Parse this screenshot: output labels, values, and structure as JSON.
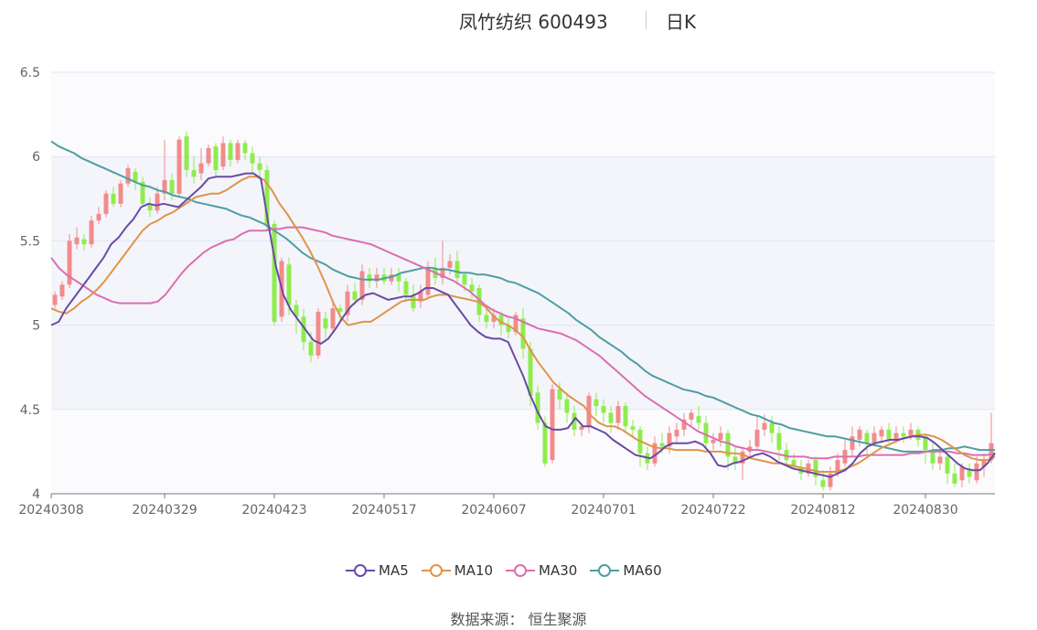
{
  "title": {
    "main": "凤竹纺织 600493",
    "sub": "日K"
  },
  "source": "数据来源： 恒生聚源",
  "colors": {
    "up": "#f28b8b",
    "down": "#8fec4c",
    "ma5": "#6a4ba3",
    "ma10": "#e0944a",
    "ma30": "#db6eb0",
    "ma60": "#4f9ea0",
    "grid": "#dfe6f3",
    "band": "#f3f5fb"
  },
  "chart_data": {
    "type": "candlestick",
    "ylim": [
      4,
      6.5
    ],
    "y_ticks": [
      "4",
      "4.5",
      "5",
      "5.5",
      "6",
      "6.5"
    ],
    "x_tick_labels": [
      "20240308",
      "20240329",
      "20240423",
      "20240517",
      "20240607",
      "20240701",
      "20240722",
      "20240812",
      "20240830"
    ],
    "x_tick_index": [
      0,
      15,
      30,
      45,
      60,
      75,
      90,
      105,
      119
    ],
    "legend": [
      "MA5",
      "MA10",
      "MA30",
      "MA60"
    ],
    "candles": [
      [
        5.12,
        5.18,
        5.1,
        5.2
      ],
      [
        5.17,
        5.24,
        5.15,
        5.26
      ],
      [
        5.24,
        5.5,
        5.22,
        5.54
      ],
      [
        5.48,
        5.52,
        5.45,
        5.58
      ],
      [
        5.51,
        5.48,
        5.44,
        5.54
      ],
      [
        5.48,
        5.62,
        5.46,
        5.65
      ],
      [
        5.62,
        5.66,
        5.6,
        5.7
      ],
      [
        5.66,
        5.78,
        5.64,
        5.8
      ],
      [
        5.78,
        5.72,
        5.7,
        5.82
      ],
      [
        5.72,
        5.84,
        5.7,
        5.86
      ],
      [
        5.84,
        5.93,
        5.82,
        5.95
      ],
      [
        5.91,
        5.85,
        5.8,
        5.93
      ],
      [
        5.85,
        5.72,
        5.7,
        5.88
      ],
      [
        5.72,
        5.68,
        5.64,
        5.76
      ],
      [
        5.68,
        5.78,
        5.66,
        5.82
      ],
      [
        5.78,
        5.86,
        5.74,
        6.1
      ],
      [
        5.86,
        5.78,
        5.74,
        5.9
      ],
      [
        5.78,
        6.1,
        5.76,
        6.12
      ],
      [
        6.12,
        5.92,
        5.88,
        6.15
      ],
      [
        5.92,
        5.88,
        5.84,
        6.0
      ],
      [
        5.9,
        5.96,
        5.86,
        6.05
      ],
      [
        5.96,
        6.05,
        5.94,
        6.07
      ],
      [
        6.06,
        5.92,
        5.88,
        6.08
      ],
      [
        5.94,
        6.08,
        5.92,
        6.12
      ],
      [
        6.08,
        5.98,
        5.94,
        6.1
      ],
      [
        5.98,
        6.08,
        5.96,
        6.1
      ],
      [
        6.08,
        6.02,
        5.98,
        6.1
      ],
      [
        6.02,
        5.96,
        5.9,
        6.06
      ],
      [
        5.96,
        5.92,
        5.86,
        6.0
      ],
      [
        5.92,
        5.6,
        5.55,
        5.95
      ],
      [
        5.6,
        5.02,
        5.0,
        5.62
      ],
      [
        5.05,
        5.38,
        5.02,
        5.4
      ],
      [
        5.36,
        5.12,
        5.06,
        5.4
      ],
      [
        5.12,
        5.05,
        4.95,
        5.15
      ],
      [
        5.05,
        4.9,
        4.85,
        5.1
      ],
      [
        4.9,
        4.82,
        4.78,
        4.96
      ],
      [
        4.82,
        5.08,
        4.8,
        5.1
      ],
      [
        5.04,
        4.98,
        4.92,
        5.08
      ],
      [
        4.98,
        5.1,
        4.96,
        5.15
      ],
      [
        5.1,
        5.08,
        5.02,
        5.12
      ],
      [
        5.06,
        5.2,
        5.02,
        5.24
      ],
      [
        5.2,
        5.15,
        5.12,
        5.25
      ],
      [
        5.15,
        5.32,
        5.12,
        5.36
      ],
      [
        5.3,
        5.26,
        5.22,
        5.34
      ],
      [
        5.26,
        5.3,
        5.22,
        5.34
      ],
      [
        5.3,
        5.26,
        5.24,
        5.34
      ],
      [
        5.26,
        5.3,
        5.24,
        5.34
      ],
      [
        5.3,
        5.26,
        5.2,
        5.34
      ],
      [
        5.26,
        5.18,
        5.14,
        5.28
      ],
      [
        5.18,
        5.1,
        5.08,
        5.24
      ],
      [
        5.14,
        5.2,
        5.1,
        5.24
      ],
      [
        5.18,
        5.34,
        5.16,
        5.38
      ],
      [
        5.34,
        5.28,
        5.24,
        5.4
      ],
      [
        5.28,
        5.34,
        5.24,
        5.5
      ],
      [
        5.34,
        5.38,
        5.3,
        5.42
      ],
      [
        5.38,
        5.28,
        5.24,
        5.44
      ],
      [
        5.3,
        5.24,
        5.2,
        5.32
      ],
      [
        5.24,
        5.2,
        5.16,
        5.28
      ],
      [
        5.22,
        5.06,
        5.02,
        5.24
      ],
      [
        5.06,
        5.02,
        4.98,
        5.1
      ],
      [
        5.02,
        5.06,
        4.98,
        5.1
      ],
      [
        5.06,
        5.0,
        4.94,
        5.08
      ],
      [
        5.0,
        4.96,
        4.92,
        5.04
      ],
      [
        4.96,
        5.06,
        4.94,
        5.08
      ],
      [
        5.04,
        4.86,
        4.8,
        5.1
      ],
      [
        4.86,
        4.58,
        4.52,
        4.9
      ],
      [
        4.6,
        4.42,
        4.38,
        4.64
      ],
      [
        4.42,
        4.18,
        4.16,
        4.46
      ],
      [
        4.2,
        4.62,
        4.18,
        4.65
      ],
      [
        4.62,
        4.56,
        4.5,
        4.66
      ],
      [
        4.56,
        4.48,
        4.42,
        4.6
      ],
      [
        4.48,
        4.38,
        4.34,
        4.52
      ],
      [
        4.38,
        4.4,
        4.34,
        4.42
      ],
      [
        4.4,
        4.58,
        4.36,
        4.6
      ],
      [
        4.56,
        4.52,
        4.46,
        4.6
      ],
      [
        4.52,
        4.48,
        4.42,
        4.56
      ],
      [
        4.48,
        4.42,
        4.36,
        4.52
      ],
      [
        4.42,
        4.52,
        4.38,
        4.55
      ],
      [
        4.52,
        4.4,
        4.36,
        4.54
      ],
      [
        4.4,
        4.38,
        4.34,
        4.44
      ],
      [
        4.38,
        4.24,
        4.16,
        4.4
      ],
      [
        4.24,
        4.18,
        4.14,
        4.28
      ],
      [
        4.18,
        4.3,
        4.16,
        4.34
      ],
      [
        4.3,
        4.28,
        4.24,
        4.36
      ],
      [
        4.28,
        4.36,
        4.24,
        4.4
      ],
      [
        4.34,
        4.38,
        4.3,
        4.42
      ],
      [
        4.38,
        4.44,
        4.34,
        4.48
      ],
      [
        4.44,
        4.48,
        4.4,
        4.5
      ],
      [
        4.46,
        4.42,
        4.38,
        4.52
      ],
      [
        4.42,
        4.3,
        4.26,
        4.46
      ],
      [
        4.3,
        4.32,
        4.26,
        4.36
      ],
      [
        4.32,
        4.36,
        4.28,
        4.4
      ],
      [
        4.36,
        4.22,
        4.14,
        4.38
      ],
      [
        4.22,
        4.18,
        4.14,
        4.28
      ],
      [
        4.18,
        4.25,
        4.08,
        4.28
      ]
    ],
    "candles_tail": [
      [
        4.25,
        4.28,
        4.22,
        4.32
      ],
      [
        4.28,
        4.38,
        4.26,
        4.46
      ],
      [
        4.38,
        4.42,
        4.34,
        4.47
      ],
      [
        4.42,
        4.36,
        4.3,
        4.46
      ],
      [
        4.36,
        4.26,
        4.2,
        4.4
      ],
      [
        4.26,
        4.2,
        4.16,
        4.3
      ],
      [
        4.2,
        4.16,
        4.14,
        4.24
      ],
      [
        4.16,
        4.12,
        4.08,
        4.2
      ],
      [
        4.12,
        4.18,
        4.1,
        4.2
      ],
      [
        4.2,
        4.1,
        4.05,
        4.22
      ],
      [
        4.08,
        4.04,
        4.02,
        4.14
      ],
      [
        4.04,
        4.12,
        4.02,
        4.16
      ],
      [
        4.12,
        4.2,
        4.1,
        4.24
      ],
      [
        4.18,
        4.26,
        4.16,
        4.32
      ],
      [
        4.26,
        4.34,
        4.22,
        4.4
      ],
      [
        4.32,
        4.38,
        4.28,
        4.4
      ],
      [
        4.36,
        4.3,
        4.24,
        4.38
      ],
      [
        4.3,
        4.36,
        4.28,
        4.4
      ],
      [
        4.34,
        4.38,
        4.3,
        4.4
      ],
      [
        4.38,
        4.32,
        4.3,
        4.42
      ],
      [
        4.32,
        4.36,
        4.3,
        4.4
      ],
      [
        4.36,
        4.34,
        4.3,
        4.4
      ],
      [
        4.34,
        4.38,
        4.32,
        4.42
      ],
      [
        4.38,
        4.32,
        4.28,
        4.4
      ],
      [
        4.34,
        4.26,
        4.18,
        4.36
      ]
    ],
    "candles_end": [
      [
        4.26,
        4.18,
        4.14,
        4.3
      ],
      [
        4.18,
        4.22,
        4.14,
        4.26
      ],
      [
        4.22,
        4.12,
        4.06,
        4.24
      ],
      [
        4.12,
        4.06,
        4.04,
        4.18
      ],
      [
        4.08,
        4.16,
        4.04,
        4.18
      ],
      [
        4.14,
        4.1,
        4.06,
        4.18
      ],
      [
        4.08,
        4.18,
        4.06,
        4.22
      ],
      [
        4.16,
        4.2,
        4.1,
        4.24
      ],
      [
        4.2,
        4.3,
        4.18,
        4.48
      ]
    ],
    "ma5": [
      5.0,
      5.02,
      5.1,
      5.16,
      5.22,
      5.28,
      5.34,
      5.4,
      5.48,
      5.52,
      5.58,
      5.63,
      5.7,
      5.72,
      5.71,
      5.72,
      5.71,
      5.7,
      5.74,
      5.78,
      5.82,
      5.87,
      5.88,
      5.88,
      5.88,
      5.89,
      5.9,
      5.9,
      5.87,
      5.6,
      5.35,
      5.18,
      5.09,
      5.03,
      4.97,
      4.91,
      4.89,
      4.92,
      4.98,
      5.05,
      5.11,
      5.15,
      5.18,
      5.19,
      5.17,
      5.15,
      5.16,
      5.17,
      5.17,
      5.19,
      5.22,
      5.22,
      5.2,
      5.18,
      5.12,
      5.06,
      5.0,
      4.96,
      4.93,
      4.92,
      4.92,
      4.9,
      4.8,
      4.7,
      4.58,
      4.48,
      4.4,
      4.38,
      4.38,
      4.39,
      4.45,
      4.4,
      4.4,
      4.38,
      4.36,
      4.32,
      4.29,
      4.26,
      4.23,
      4.22,
      4.21,
      4.24,
      4.28,
      4.3,
      4.3,
      4.3,
      4.31,
      4.29,
      4.24,
      4.17,
      4.16,
      4.18,
      4.19,
      4.21,
      4.23,
      4.24,
      4.22,
      4.19,
      4.17,
      4.15,
      4.14,
      4.13,
      4.12,
      4.11,
      4.1,
      4.12,
      4.14,
      4.18,
      4.24,
      4.28,
      4.3,
      4.31,
      4.32,
      4.32,
      4.33,
      4.34,
      4.34,
      4.33,
      4.3,
      4.26,
      4.22,
      4.18,
      4.15,
      4.14,
      4.14,
      4.18,
      4.24
    ],
    "ma10": [
      5.1,
      5.08,
      5.07,
      5.1,
      5.14,
      5.17,
      5.21,
      5.26,
      5.32,
      5.38,
      5.44,
      5.5,
      5.56,
      5.6,
      5.62,
      5.65,
      5.67,
      5.7,
      5.73,
      5.76,
      5.77,
      5.78,
      5.78,
      5.8,
      5.83,
      5.86,
      5.88,
      5.88,
      5.86,
      5.8,
      5.72,
      5.66,
      5.59,
      5.52,
      5.44,
      5.35,
      5.25,
      5.14,
      5.05,
      5.0,
      5.01,
      5.02,
      5.02,
      5.05,
      5.08,
      5.11,
      5.14,
      5.15,
      5.15,
      5.15,
      5.17,
      5.18,
      5.18,
      5.17,
      5.16,
      5.15,
      5.14,
      5.11,
      5.06,
      5.02,
      5.0,
      4.97,
      4.93,
      4.85,
      4.78,
      4.72,
      4.66,
      4.62,
      4.58,
      4.55,
      4.52,
      4.46,
      4.42,
      4.4,
      4.4,
      4.38,
      4.35,
      4.32,
      4.3,
      4.28,
      4.27,
      4.27,
      4.26,
      4.26,
      4.26,
      4.26,
      4.25,
      4.25,
      4.25,
      4.24,
      4.24,
      4.23,
      4.21,
      4.2,
      4.19,
      4.18,
      4.18,
      4.17,
      4.16,
      4.15,
      4.14,
      4.13,
      4.13,
      4.13,
      4.14,
      4.16,
      4.18,
      4.21,
      4.24,
      4.27,
      4.29,
      4.31,
      4.33,
      4.34,
      4.35,
      4.35,
      4.34,
      4.32,
      4.29,
      4.26,
      4.23,
      4.21,
      4.2,
      4.2,
      4.22
    ],
    "ma30": [
      5.4,
      5.34,
      5.3,
      5.27,
      5.24,
      5.21,
      5.18,
      5.16,
      5.14,
      5.13,
      5.13,
      5.13,
      5.13,
      5.13,
      5.14,
      5.18,
      5.24,
      5.3,
      5.35,
      5.39,
      5.43,
      5.46,
      5.48,
      5.5,
      5.51,
      5.54,
      5.56,
      5.56,
      5.56,
      5.57,
      5.57,
      5.58,
      5.58,
      5.58,
      5.57,
      5.56,
      5.55,
      5.53,
      5.52,
      5.51,
      5.5,
      5.49,
      5.48,
      5.46,
      5.44,
      5.42,
      5.4,
      5.38,
      5.36,
      5.34,
      5.32,
      5.3,
      5.28,
      5.26,
      5.23,
      5.2,
      5.16,
      5.12,
      5.09,
      5.07,
      5.05,
      5.04,
      5.02,
      5.0,
      4.98,
      4.97,
      4.96,
      4.95,
      4.93,
      4.91,
      4.88,
      4.85,
      4.82,
      4.78,
      4.74,
      4.7,
      4.66,
      4.62,
      4.58,
      4.55,
      4.52,
      4.49,
      4.46,
      4.43,
      4.4,
      4.37,
      4.35,
      4.33,
      4.31,
      4.3,
      4.28,
      4.27,
      4.26,
      4.26,
      4.25,
      4.24,
      4.23,
      4.22,
      4.22,
      4.22,
      4.21,
      4.21,
      4.21,
      4.22,
      4.22,
      4.22,
      4.22,
      4.23,
      4.23,
      4.23,
      4.23,
      4.23,
      4.23,
      4.24,
      4.24,
      4.25,
      4.25,
      4.25,
      4.25,
      4.24,
      4.24,
      4.23,
      4.23,
      4.23,
      4.24
    ],
    "ma60": [
      6.09,
      6.06,
      6.04,
      6.02,
      5.99,
      5.97,
      5.95,
      5.93,
      5.91,
      5.89,
      5.87,
      5.85,
      5.83,
      5.82,
      5.8,
      5.79,
      5.77,
      5.76,
      5.75,
      5.73,
      5.72,
      5.71,
      5.7,
      5.69,
      5.67,
      5.65,
      5.64,
      5.62,
      5.6,
      5.57,
      5.54,
      5.51,
      5.47,
      5.43,
      5.4,
      5.38,
      5.36,
      5.33,
      5.31,
      5.29,
      5.28,
      5.27,
      5.27,
      5.27,
      5.28,
      5.29,
      5.31,
      5.32,
      5.33,
      5.34,
      5.34,
      5.33,
      5.33,
      5.32,
      5.31,
      5.31,
      5.3,
      5.3,
      5.29,
      5.28,
      5.26,
      5.25,
      5.23,
      5.21,
      5.19,
      5.16,
      5.13,
      5.1,
      5.07,
      5.03,
      5.0,
      4.97,
      4.93,
      4.9,
      4.87,
      4.84,
      4.8,
      4.77,
      4.73,
      4.7,
      4.68,
      4.66,
      4.64,
      4.62,
      4.61,
      4.6,
      4.58,
      4.57,
      4.55,
      4.53,
      4.51,
      4.49,
      4.47,
      4.46,
      4.44,
      4.42,
      4.41,
      4.39,
      4.38,
      4.37,
      4.36,
      4.35,
      4.34,
      4.34,
      4.33,
      4.32,
      4.31,
      4.3,
      4.29,
      4.28,
      4.27,
      4.26,
      4.25,
      4.25,
      4.25,
      4.25,
      4.26,
      4.26,
      4.27,
      4.27,
      4.28,
      4.27,
      4.26,
      4.26,
      4.26
    ]
  }
}
